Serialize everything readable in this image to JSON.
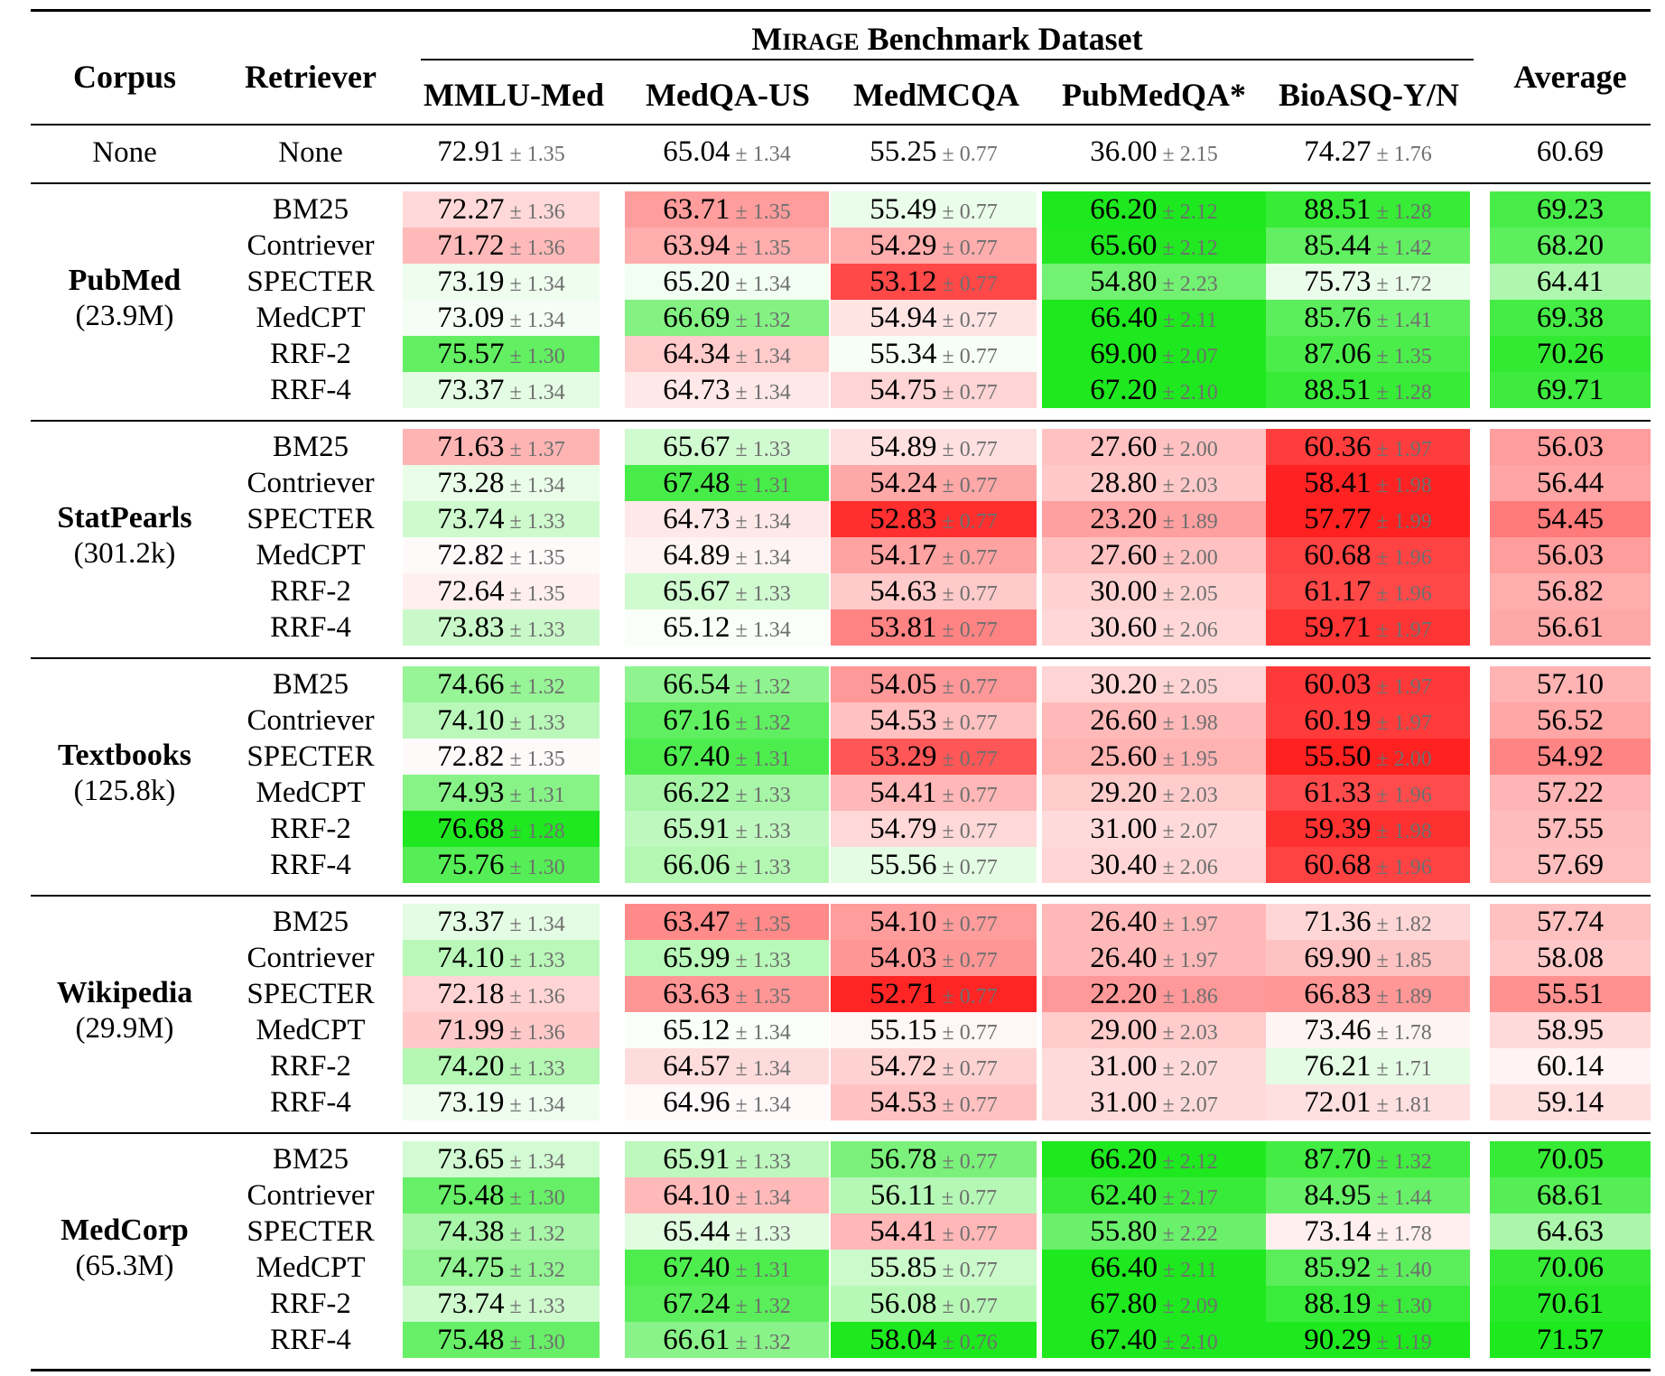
{
  "header": {
    "corpus": "Corpus",
    "retriever": "Retriever",
    "benchmark_smallcaps_first": "M",
    "benchmark_smallcaps_rest": "IRAGE",
    "benchmark_suffix": " Benchmark Dataset",
    "average": "Average"
  },
  "none_row": {
    "corpus": "None",
    "retriever": "None"
  },
  "chart_data": {
    "type": "table",
    "columns": [
      "MMLU-Med",
      "MedQA-US",
      "MedMCQA",
      "PubMedQA*",
      "BioASQ-Y/N"
    ],
    "average_label": "Average",
    "color_scale": {
      "worse": "#ff1f1f",
      "better": "#1fe81f",
      "neutral": "#ffffff",
      "note": "cell tint shows difference from the None baseline"
    },
    "baseline": {
      "corpus": "None",
      "retriever": "None",
      "values": [
        72.91,
        65.04,
        55.25,
        36.0,
        74.27
      ],
      "errors": [
        1.35,
        1.34,
        0.77,
        2.15,
        1.76
      ],
      "average": 60.69
    },
    "groups": [
      {
        "corpus": "PubMed",
        "size": "(23.9M)",
        "rows": [
          {
            "retriever": "BM25",
            "values": [
              72.27,
              63.71,
              55.49,
              66.2,
              88.51
            ],
            "errors": [
              1.36,
              1.35,
              0.77,
              2.12,
              1.28
            ],
            "average": 69.23
          },
          {
            "retriever": "Contriever",
            "values": [
              71.72,
              63.94,
              54.29,
              65.6,
              85.44
            ],
            "errors": [
              1.36,
              1.35,
              0.77,
              2.12,
              1.42
            ],
            "average": 68.2
          },
          {
            "retriever": "SPECTER",
            "values": [
              73.19,
              65.2,
              53.12,
              54.8,
              75.73
            ],
            "errors": [
              1.34,
              1.34,
              0.77,
              2.23,
              1.72
            ],
            "average": 64.41
          },
          {
            "retriever": "MedCPT",
            "values": [
              73.09,
              66.69,
              54.94,
              66.4,
              85.76
            ],
            "errors": [
              1.34,
              1.32,
              0.77,
              2.11,
              1.41
            ],
            "average": 69.38
          },
          {
            "retriever": "RRF-2",
            "values": [
              75.57,
              64.34,
              55.34,
              69.0,
              87.06
            ],
            "errors": [
              1.3,
              1.34,
              0.77,
              2.07,
              1.35
            ],
            "average": 70.26
          },
          {
            "retriever": "RRF-4",
            "values": [
              73.37,
              64.73,
              54.75,
              67.2,
              88.51
            ],
            "errors": [
              1.34,
              1.34,
              0.77,
              2.1,
              1.28
            ],
            "average": 69.71
          }
        ]
      },
      {
        "corpus": "StatPearls",
        "size": "(301.2k)",
        "rows": [
          {
            "retriever": "BM25",
            "values": [
              71.63,
              65.67,
              54.89,
              27.6,
              60.36
            ],
            "errors": [
              1.37,
              1.33,
              0.77,
              2.0,
              1.97
            ],
            "average": 56.03
          },
          {
            "retriever": "Contriever",
            "values": [
              73.28,
              67.48,
              54.24,
              28.8,
              58.41
            ],
            "errors": [
              1.34,
              1.31,
              0.77,
              2.03,
              1.98
            ],
            "average": 56.44
          },
          {
            "retriever": "SPECTER",
            "values": [
              73.74,
              64.73,
              52.83,
              23.2,
              57.77
            ],
            "errors": [
              1.33,
              1.34,
              0.77,
              1.89,
              1.99
            ],
            "average": 54.45
          },
          {
            "retriever": "MedCPT",
            "values": [
              72.82,
              64.89,
              54.17,
              27.6,
              60.68
            ],
            "errors": [
              1.35,
              1.34,
              0.77,
              2.0,
              1.96
            ],
            "average": 56.03
          },
          {
            "retriever": "RRF-2",
            "values": [
              72.64,
              65.67,
              54.63,
              30.0,
              61.17
            ],
            "errors": [
              1.35,
              1.33,
              0.77,
              2.05,
              1.96
            ],
            "average": 56.82
          },
          {
            "retriever": "RRF-4",
            "values": [
              73.83,
              65.12,
              53.81,
              30.6,
              59.71
            ],
            "errors": [
              1.33,
              1.34,
              0.77,
              2.06,
              1.97
            ],
            "average": 56.61
          }
        ]
      },
      {
        "corpus": "Textbooks",
        "size": "(125.8k)",
        "rows": [
          {
            "retriever": "BM25",
            "values": [
              74.66,
              66.54,
              54.05,
              30.2,
              60.03
            ],
            "errors": [
              1.32,
              1.32,
              0.77,
              2.05,
              1.97
            ],
            "average": 57.1
          },
          {
            "retriever": "Contriever",
            "values": [
              74.1,
              67.16,
              54.53,
              26.6,
              60.19
            ],
            "errors": [
              1.33,
              1.32,
              0.77,
              1.98,
              1.97
            ],
            "average": 56.52
          },
          {
            "retriever": "SPECTER",
            "values": [
              72.82,
              67.4,
              53.29,
              25.6,
              55.5
            ],
            "errors": [
              1.35,
              1.31,
              0.77,
              1.95,
              2.0
            ],
            "average": 54.92
          },
          {
            "retriever": "MedCPT",
            "values": [
              74.93,
              66.22,
              54.41,
              29.2,
              61.33
            ],
            "errors": [
              1.31,
              1.33,
              0.77,
              2.03,
              1.96
            ],
            "average": 57.22
          },
          {
            "retriever": "RRF-2",
            "values": [
              76.68,
              65.91,
              54.79,
              31.0,
              59.39
            ],
            "errors": [
              1.28,
              1.33,
              0.77,
              2.07,
              1.98
            ],
            "average": 57.55
          },
          {
            "retriever": "RRF-4",
            "values": [
              75.76,
              66.06,
              55.56,
              30.4,
              60.68
            ],
            "errors": [
              1.3,
              1.33,
              0.77,
              2.06,
              1.96
            ],
            "average": 57.69
          }
        ]
      },
      {
        "corpus": "Wikipedia",
        "size": "(29.9M)",
        "rows": [
          {
            "retriever": "BM25",
            "values": [
              73.37,
              63.47,
              54.1,
              26.4,
              71.36
            ],
            "errors": [
              1.34,
              1.35,
              0.77,
              1.97,
              1.82
            ],
            "average": 57.74
          },
          {
            "retriever": "Contriever",
            "values": [
              74.1,
              65.99,
              54.03,
              26.4,
              69.9
            ],
            "errors": [
              1.33,
              1.33,
              0.77,
              1.97,
              1.85
            ],
            "average": 58.08
          },
          {
            "retriever": "SPECTER",
            "values": [
              72.18,
              63.63,
              52.71,
              22.2,
              66.83
            ],
            "errors": [
              1.36,
              1.35,
              0.77,
              1.86,
              1.89
            ],
            "average": 55.51
          },
          {
            "retriever": "MedCPT",
            "values": [
              71.99,
              65.12,
              55.15,
              29.0,
              73.46
            ],
            "errors": [
              1.36,
              1.34,
              0.77,
              2.03,
              1.78
            ],
            "average": 58.95
          },
          {
            "retriever": "RRF-2",
            "values": [
              74.2,
              64.57,
              54.72,
              31.0,
              76.21
            ],
            "errors": [
              1.33,
              1.34,
              0.77,
              2.07,
              1.71
            ],
            "average": 60.14
          },
          {
            "retriever": "RRF-4",
            "values": [
              73.19,
              64.96,
              54.53,
              31.0,
              72.01
            ],
            "errors": [
              1.34,
              1.34,
              0.77,
              2.07,
              1.81
            ],
            "average": 59.14
          }
        ]
      },
      {
        "corpus": "MedCorp",
        "size": "(65.3M)",
        "rows": [
          {
            "retriever": "BM25",
            "values": [
              73.65,
              65.91,
              56.78,
              66.2,
              87.7
            ],
            "errors": [
              1.34,
              1.33,
              0.77,
              2.12,
              1.32
            ],
            "average": 70.05
          },
          {
            "retriever": "Contriever",
            "values": [
              75.48,
              64.1,
              56.11,
              62.4,
              84.95
            ],
            "errors": [
              1.3,
              1.34,
              0.77,
              2.17,
              1.44
            ],
            "average": 68.61
          },
          {
            "retriever": "SPECTER",
            "values": [
              74.38,
              65.44,
              54.41,
              55.8,
              73.14
            ],
            "errors": [
              1.32,
              1.33,
              0.77,
              2.22,
              1.78
            ],
            "average": 64.63
          },
          {
            "retriever": "MedCPT",
            "values": [
              74.75,
              67.4,
              55.85,
              66.4,
              85.92
            ],
            "errors": [
              1.32,
              1.31,
              0.77,
              2.11,
              1.4
            ],
            "average": 70.06
          },
          {
            "retriever": "RRF-2",
            "values": [
              73.74,
              67.24,
              56.08,
              67.8,
              88.19
            ],
            "errors": [
              1.33,
              1.32,
              0.77,
              2.09,
              1.3
            ],
            "average": 70.61
          },
          {
            "retriever": "RRF-4",
            "values": [
              75.48,
              66.61,
              58.04,
              67.4,
              90.29
            ],
            "errors": [
              1.3,
              1.32,
              0.76,
              2.1,
              1.19
            ],
            "average": 71.57
          }
        ]
      }
    ]
  }
}
